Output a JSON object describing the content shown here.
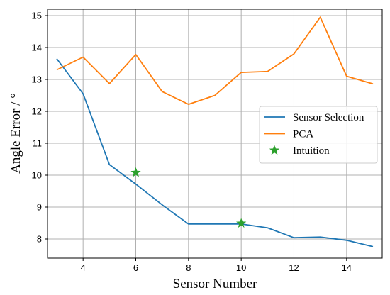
{
  "chart_data": {
    "type": "line",
    "xlabel": "Sensor Number",
    "ylabel": "Angle Error / °",
    "xlim": [
      2.65,
      15.35
    ],
    "ylim": [
      7.4,
      15.2
    ],
    "xticks": [
      4,
      6,
      8,
      10,
      12,
      14
    ],
    "yticks": [
      8,
      9,
      10,
      11,
      12,
      13,
      14,
      15
    ],
    "grid": true,
    "legend_position": "center-right",
    "series": [
      {
        "name": "Sensor Selection",
        "kind": "line",
        "color": "#1f77b4",
        "x": [
          3,
          4,
          5,
          6,
          7,
          8,
          9,
          10,
          11,
          12,
          13,
          14,
          15
        ],
        "y": [
          13.65,
          12.55,
          10.33,
          9.72,
          9.07,
          8.47,
          8.47,
          8.47,
          8.35,
          8.04,
          8.06,
          7.96,
          7.76
        ]
      },
      {
        "name": "PCA",
        "kind": "line",
        "color": "#ff7f0e",
        "x": [
          3,
          4,
          5,
          6,
          7,
          8,
          9,
          10,
          11,
          12,
          13,
          14,
          15
        ],
        "y": [
          13.3,
          13.7,
          12.87,
          13.78,
          12.62,
          12.22,
          12.5,
          13.22,
          13.25,
          13.8,
          14.95,
          13.1,
          12.86
        ]
      },
      {
        "name": "Intuition",
        "kind": "marker",
        "marker": "star",
        "color": "#2ca02c",
        "x": [
          6,
          10
        ],
        "y": [
          10.08,
          8.49
        ]
      }
    ]
  }
}
